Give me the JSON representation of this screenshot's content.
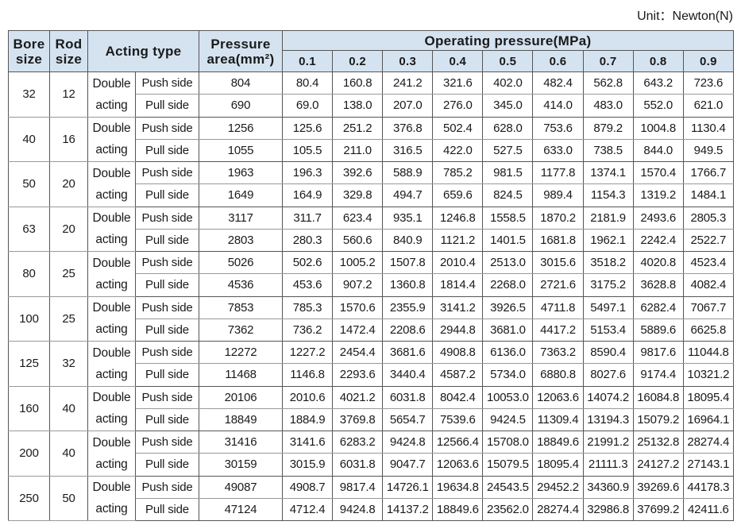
{
  "unit": "Unit：Newton(N)",
  "table": {
    "headers": {
      "bore": "Bore size",
      "rod": "Rod size",
      "acting": "Acting type",
      "area": "Pressure area(mm²)",
      "pressure": "Operating pressure(MPa)",
      "pressures": [
        "0.1",
        "0.2",
        "0.3",
        "0.4",
        "0.5",
        "0.6",
        "0.7",
        "0.8",
        "0.9"
      ]
    },
    "groups": [
      {
        "bore": "32",
        "rod": "12",
        "acting": "Double acting",
        "push": {
          "side": "Push side",
          "area": "804",
          "values": [
            "80.4",
            "160.8",
            "241.2",
            "321.6",
            "402.0",
            "482.4",
            "562.8",
            "643.2",
            "723.6"
          ]
        },
        "pull": {
          "side": "Pull side",
          "area": "690",
          "values": [
            "69.0",
            "138.0",
            "207.0",
            "276.0",
            "345.0",
            "414.0",
            "483.0",
            "552.0",
            "621.0"
          ]
        }
      },
      {
        "bore": "40",
        "rod": "16",
        "acting": "Double acting",
        "push": {
          "side": "Push side",
          "area": "1256",
          "values": [
            "125.6",
            "251.2",
            "376.8",
            "502.4",
            "628.0",
            "753.6",
            "879.2",
            "1004.8",
            "1130.4"
          ]
        },
        "pull": {
          "side": "Pull side",
          "area": "1055",
          "values": [
            "105.5",
            "211.0",
            "316.5",
            "422.0",
            "527.5",
            "633.0",
            "738.5",
            "844.0",
            "949.5"
          ]
        }
      },
      {
        "bore": "50",
        "rod": "20",
        "acting": "Double acting",
        "push": {
          "side": "Push side",
          "area": "1963",
          "values": [
            "196.3",
            "392.6",
            "588.9",
            "785.2",
            "981.5",
            "1177.8",
            "1374.1",
            "1570.4",
            "1766.7"
          ]
        },
        "pull": {
          "side": "Pull side",
          "area": "1649",
          "values": [
            "164.9",
            "329.8",
            "494.7",
            "659.6",
            "824.5",
            "989.4",
            "1154.3",
            "1319.2",
            "1484.1"
          ]
        }
      },
      {
        "bore": "63",
        "rod": "20",
        "acting": "Double acting",
        "push": {
          "side": "Push side",
          "area": "3117",
          "values": [
            "311.7",
            "623.4",
            "935.1",
            "1246.8",
            "1558.5",
            "1870.2",
            "2181.9",
            "2493.6",
            "2805.3"
          ]
        },
        "pull": {
          "side": "Pull side",
          "area": "2803",
          "values": [
            "280.3",
            "560.6",
            "840.9",
            "1121.2",
            "1401.5",
            "1681.8",
            "1962.1",
            "2242.4",
            "2522.7"
          ]
        }
      },
      {
        "bore": "80",
        "rod": "25",
        "acting": "Double acting",
        "push": {
          "side": "Push side",
          "area": "5026",
          "values": [
            "502.6",
            "1005.2",
            "1507.8",
            "2010.4",
            "2513.0",
            "3015.6",
            "3518.2",
            "4020.8",
            "4523.4"
          ]
        },
        "pull": {
          "side": "Pull side",
          "area": "4536",
          "values": [
            "453.6",
            "907.2",
            "1360.8",
            "1814.4",
            "2268.0",
            "2721.6",
            "3175.2",
            "3628.8",
            "4082.4"
          ]
        }
      },
      {
        "bore": "100",
        "rod": "25",
        "acting": "Double acting",
        "push": {
          "side": "Push side",
          "area": "7853",
          "values": [
            "785.3",
            "1570.6",
            "2355.9",
            "3141.2",
            "3926.5",
            "4711.8",
            "5497.1",
            "6282.4",
            "7067.7"
          ]
        },
        "pull": {
          "side": "Pull side",
          "area": "7362",
          "values": [
            "736.2",
            "1472.4",
            "2208.6",
            "2944.8",
            "3681.0",
            "4417.2",
            "5153.4",
            "5889.6",
            "6625.8"
          ]
        }
      },
      {
        "bore": "125",
        "rod": "32",
        "acting": "Double acting",
        "push": {
          "side": "Push side",
          "area": "12272",
          "values": [
            "1227.2",
            "2454.4",
            "3681.6",
            "4908.8",
            "6136.0",
            "7363.2",
            "8590.4",
            "9817.6",
            "11044.8"
          ]
        },
        "pull": {
          "side": "Pull side",
          "area": "11468",
          "values": [
            "1146.8",
            "2293.6",
            "3440.4",
            "4587.2",
            "5734.0",
            "6880.8",
            "8027.6",
            "9174.4",
            "10321.2"
          ]
        }
      },
      {
        "bore": "160",
        "rod": "40",
        "acting": "Double acting",
        "push": {
          "side": "Push side",
          "area": "20106",
          "values": [
            "2010.6",
            "4021.2",
            "6031.8",
            "8042.4",
            "10053.0",
            "12063.6",
            "14074.2",
            "16084.8",
            "18095.4"
          ]
        },
        "pull": {
          "side": "Pull side",
          "area": "18849",
          "values": [
            "1884.9",
            "3769.8",
            "5654.7",
            "7539.6",
            "9424.5",
            "11309.4",
            "13194.3",
            "15079.2",
            "16964.1"
          ]
        }
      },
      {
        "bore": "200",
        "rod": "40",
        "acting": "Double acting",
        "push": {
          "side": "Push side",
          "area": "31416",
          "values": [
            "3141.6",
            "6283.2",
            "9424.8",
            "12566.4",
            "15708.0",
            "18849.6",
            "21991.2",
            "25132.8",
            "28274.4"
          ]
        },
        "pull": {
          "side": "Pull side",
          "area": "30159",
          "values": [
            "3015.9",
            "6031.8",
            "9047.7",
            "12063.6",
            "15079.5",
            "18095.4",
            "21111.3",
            "24127.2",
            "27143.1"
          ]
        }
      },
      {
        "bore": "250",
        "rod": "50",
        "acting": "Double acting",
        "push": {
          "side": "Push side",
          "area": "49087",
          "values": [
            "4908.7",
            "9817.4",
            "14726.1",
            "19634.8",
            "24543.5",
            "29452.2",
            "34360.9",
            "39269.6",
            "44178.3"
          ]
        },
        "pull": {
          "side": "Pull side",
          "area": "47124",
          "values": [
            "4712.4",
            "9424.8",
            "14137.2",
            "18849.6",
            "23562.0",
            "28274.4",
            "32986.8",
            "37699.2",
            "42411.6"
          ]
        }
      }
    ]
  }
}
